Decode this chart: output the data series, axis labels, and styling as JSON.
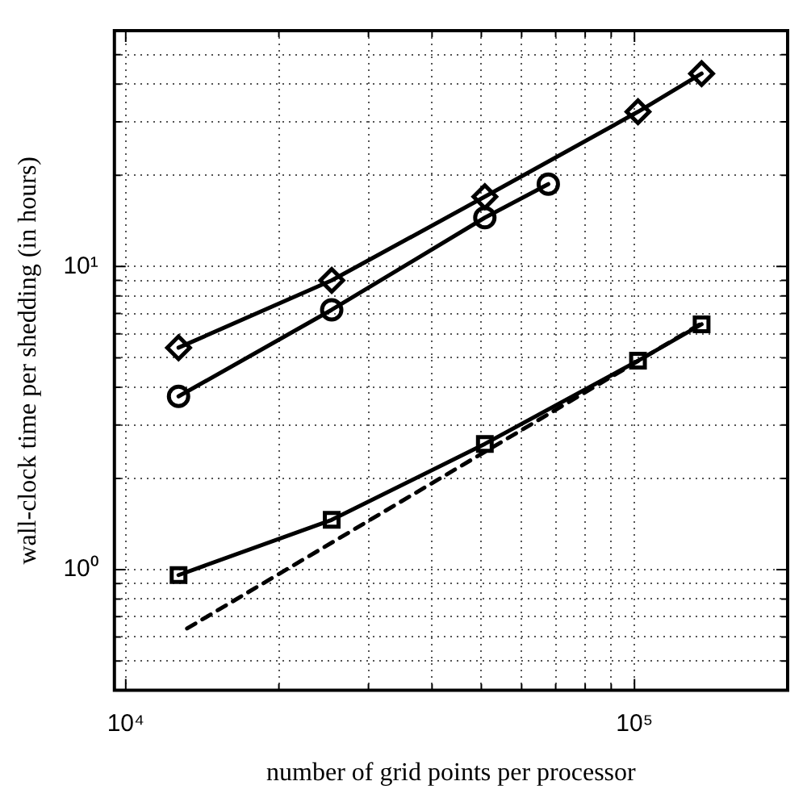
{
  "chart_data": {
    "type": "line",
    "xlabel": "number of grid points per processor",
    "ylabel": "wall-clock time per shedding (in hours)",
    "log": "xy",
    "grid": true,
    "legend": false,
    "xlim": [
      9500,
      200000
    ],
    "ylim": [
      0.4,
      60
    ],
    "xticks": [
      {
        "value": 10000,
        "label": "10⁴"
      },
      {
        "value": 20000,
        "label": null
      },
      {
        "value": 30000,
        "label": null
      },
      {
        "value": 40000,
        "label": null
      },
      {
        "value": 50000,
        "label": null
      },
      {
        "value": 60000,
        "label": null
      },
      {
        "value": 70000,
        "label": null
      },
      {
        "value": 80000,
        "label": null
      },
      {
        "value": 90000,
        "label": null
      },
      {
        "value": 100000,
        "label": "10⁵"
      },
      {
        "value": 200000,
        "label": null
      }
    ],
    "yticks": [
      {
        "value": 0.4,
        "label": null
      },
      {
        "value": 0.5,
        "label": null
      },
      {
        "value": 0.6,
        "label": null
      },
      {
        "value": 0.7,
        "label": null
      },
      {
        "value": 0.8,
        "label": null
      },
      {
        "value": 0.9,
        "label": null
      },
      {
        "value": 1,
        "label": "10⁰"
      },
      {
        "value": 2,
        "label": null
      },
      {
        "value": 3,
        "label": null
      },
      {
        "value": 4,
        "label": null
      },
      {
        "value": 5,
        "label": null
      },
      {
        "value": 6,
        "label": null
      },
      {
        "value": 7,
        "label": null
      },
      {
        "value": 8,
        "label": null
      },
      {
        "value": 9,
        "label": null
      },
      {
        "value": 10,
        "label": "10¹"
      },
      {
        "value": 20,
        "label": null
      },
      {
        "value": 30,
        "label": null
      },
      {
        "value": 40,
        "label": null
      },
      {
        "value": 50,
        "label": null
      },
      {
        "value": 60,
        "label": null
      }
    ],
    "series": [
      {
        "color": "#000000",
        "marker": "diamond",
        "line_style": "solid",
        "x": [
          12700,
          25400,
          50800,
          101600,
          135500
        ],
        "values": [
          5.4,
          9.0,
          17,
          32.4,
          43.3
        ]
      },
      {
        "color": "#000000",
        "marker": "circle",
        "line_style": "solid",
        "x": [
          12700,
          25400,
          50800,
          67700
        ],
        "values": [
          3.73,
          7.2,
          14.5,
          18.7
        ]
      },
      {
        "color": "#000000",
        "marker": "square",
        "line_style": "solid",
        "x": [
          12700,
          25400,
          50800,
          101600,
          135500
        ],
        "values": [
          0.96,
          1.46,
          2.6,
          4.89,
          6.45
        ]
      },
      {
        "color": "#000000",
        "marker": "none",
        "line_style": "dashed",
        "x": [
          13200,
          135500
        ],
        "values": [
          0.64,
          6.5
        ]
      }
    ]
  }
}
